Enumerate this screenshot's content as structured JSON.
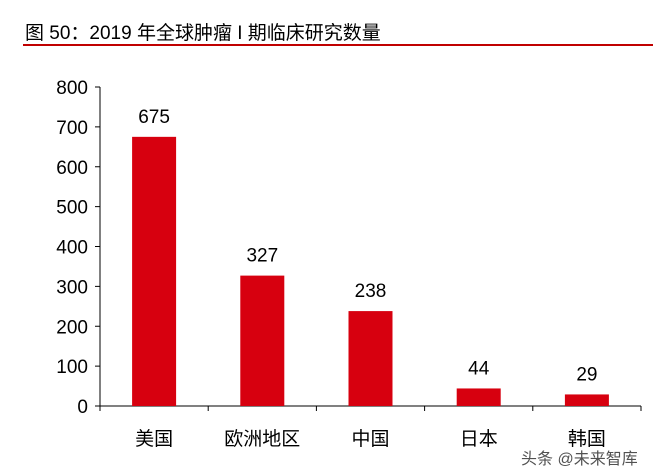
{
  "header": {
    "title": "图 50：2019 年全球肿瘤 I 期临床研究数量"
  },
  "watermark": "头条 @未来智库",
  "chart_data": {
    "type": "bar",
    "title": "图 50：2019 年全球肿瘤 I 期临床研究数量",
    "categories": [
      "美国",
      "欧洲地区",
      "中国",
      "日本",
      "韩国"
    ],
    "values": [
      675,
      327,
      238,
      44,
      29
    ],
    "ylim": [
      0,
      800
    ],
    "yticks": [
      0,
      100,
      200,
      300,
      400,
      500,
      600,
      700,
      800
    ],
    "xlabel": "",
    "ylabel": "",
    "grid": false,
    "bar_color": "#d7000f"
  }
}
